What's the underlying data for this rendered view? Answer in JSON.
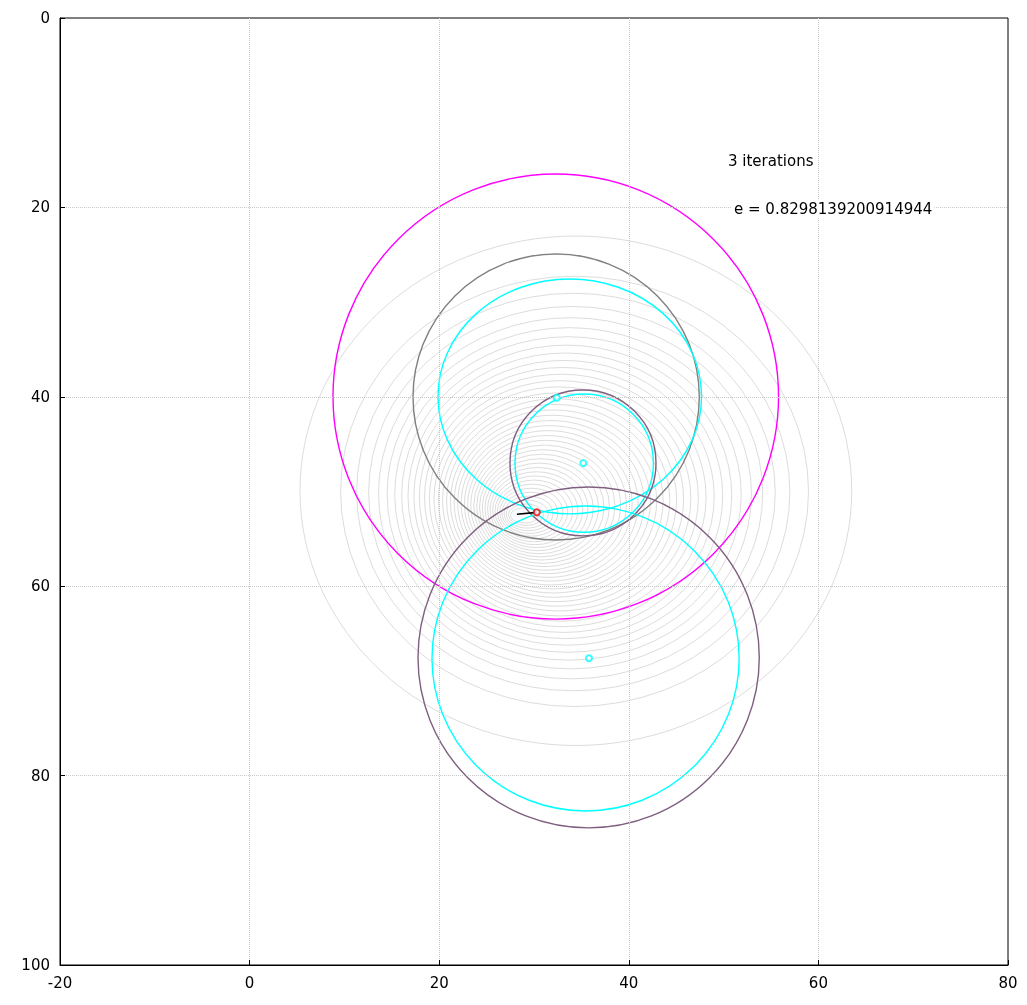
{
  "chart_data": {
    "type": "line",
    "xlim": [
      -20,
      80
    ],
    "xticks": [
      -20,
      0,
      20,
      40,
      60,
      80
    ],
    "ylim": [
      100,
      0
    ],
    "yticks": [
      0,
      20,
      40,
      60,
      80,
      100
    ],
    "grid": true,
    "marker": "none",
    "annotations": [
      "3 iterations",
      "e = 0.8298139200914944"
    ],
    "series": [
      {
        "color": "#000000",
        "x": [
          28.2,
          30.3
        ],
        "values": [
          52.4,
          52.2
        ]
      },
      {
        "type": "scatter",
        "marker": "circle",
        "color": "#00ffff",
        "x": [
          32.4,
          35.2,
          35.8
        ],
        "values": [
          40.1,
          47.0,
          67.6
        ]
      },
      {
        "type": "scatter",
        "marker": "circle",
        "color": "#ff0000",
        "x": [
          30.3
        ],
        "values": [
          52.2
        ]
      }
    ]
  }
}
